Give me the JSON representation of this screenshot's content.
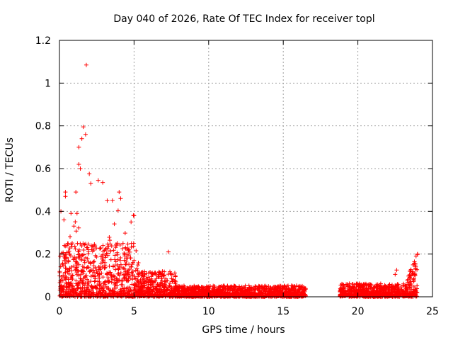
{
  "chart_data": {
    "type": "scatter",
    "title": "Day 040 of 2026, Rate Of TEC Index for receiver topl",
    "xlabel": "GPS time / hours",
    "ylabel": "ROTI / TECUs",
    "xlim": [
      0,
      25
    ],
    "ylim": [
      0,
      1.2
    ],
    "xticks": [
      0,
      5,
      10,
      15,
      20,
      25
    ],
    "xtick_labels": [
      "0",
      "5",
      "10",
      "15",
      "20",
      "25"
    ],
    "yticks": [
      0,
      0.2,
      0.4,
      0.6,
      0.8,
      1,
      1.2
    ],
    "ytick_labels": [
      "0",
      "0.2",
      "0.4",
      "0.6",
      "0.8",
      "1",
      "1.2"
    ],
    "grid": true,
    "marker": "+",
    "color": "#ff0000",
    "notable_points": [
      {
        "x": 1.8,
        "y": 1.085
      },
      {
        "x": 1.6,
        "y": 0.795
      },
      {
        "x": 1.75,
        "y": 0.76
      },
      {
        "x": 1.5,
        "y": 0.74
      },
      {
        "x": 1.3,
        "y": 0.7
      },
      {
        "x": 1.3,
        "y": 0.62
      },
      {
        "x": 1.4,
        "y": 0.6
      },
      {
        "x": 2.0,
        "y": 0.575
      },
      {
        "x": 2.6,
        "y": 0.545
      },
      {
        "x": 2.9,
        "y": 0.535
      },
      {
        "x": 2.1,
        "y": 0.53
      },
      {
        "x": 0.4,
        "y": 0.49
      },
      {
        "x": 0.4,
        "y": 0.47
      },
      {
        "x": 1.1,
        "y": 0.49
      },
      {
        "x": 4.0,
        "y": 0.49
      },
      {
        "x": 3.2,
        "y": 0.45
      },
      {
        "x": 4.1,
        "y": 0.46
      },
      {
        "x": 0.1,
        "y": 0.4
      },
      {
        "x": 0.3,
        "y": 0.36
      },
      {
        "x": 5.0,
        "y": 0.38
      },
      {
        "x": 4.8,
        "y": 0.35
      },
      {
        "x": 7.3,
        "y": 0.21
      },
      {
        "x": 22.6,
        "y": 0.125
      },
      {
        "x": 22.5,
        "y": 0.105
      },
      {
        "x": 24.0,
        "y": 0.2
      },
      {
        "x": 23.9,
        "y": 0.19
      }
    ],
    "density_profile": {
      "segments": [
        {
          "x_start": 0.0,
          "x_end": 5.3,
          "typical_max": 0.25,
          "note": "dense cloud of points with high spikes"
        },
        {
          "x_start": 5.3,
          "x_end": 7.8,
          "typical_max": 0.12,
          "note": "moderate scatter"
        },
        {
          "x_start": 7.8,
          "x_end": 16.5,
          "typical_max": 0.05,
          "note": "low band near zero"
        },
        {
          "x_start": 18.8,
          "x_end": 24.0,
          "typical_max": 0.06,
          "note": "low band rising to 0.2 at end"
        }
      ],
      "gap": [
        16.5,
        18.8
      ]
    }
  }
}
